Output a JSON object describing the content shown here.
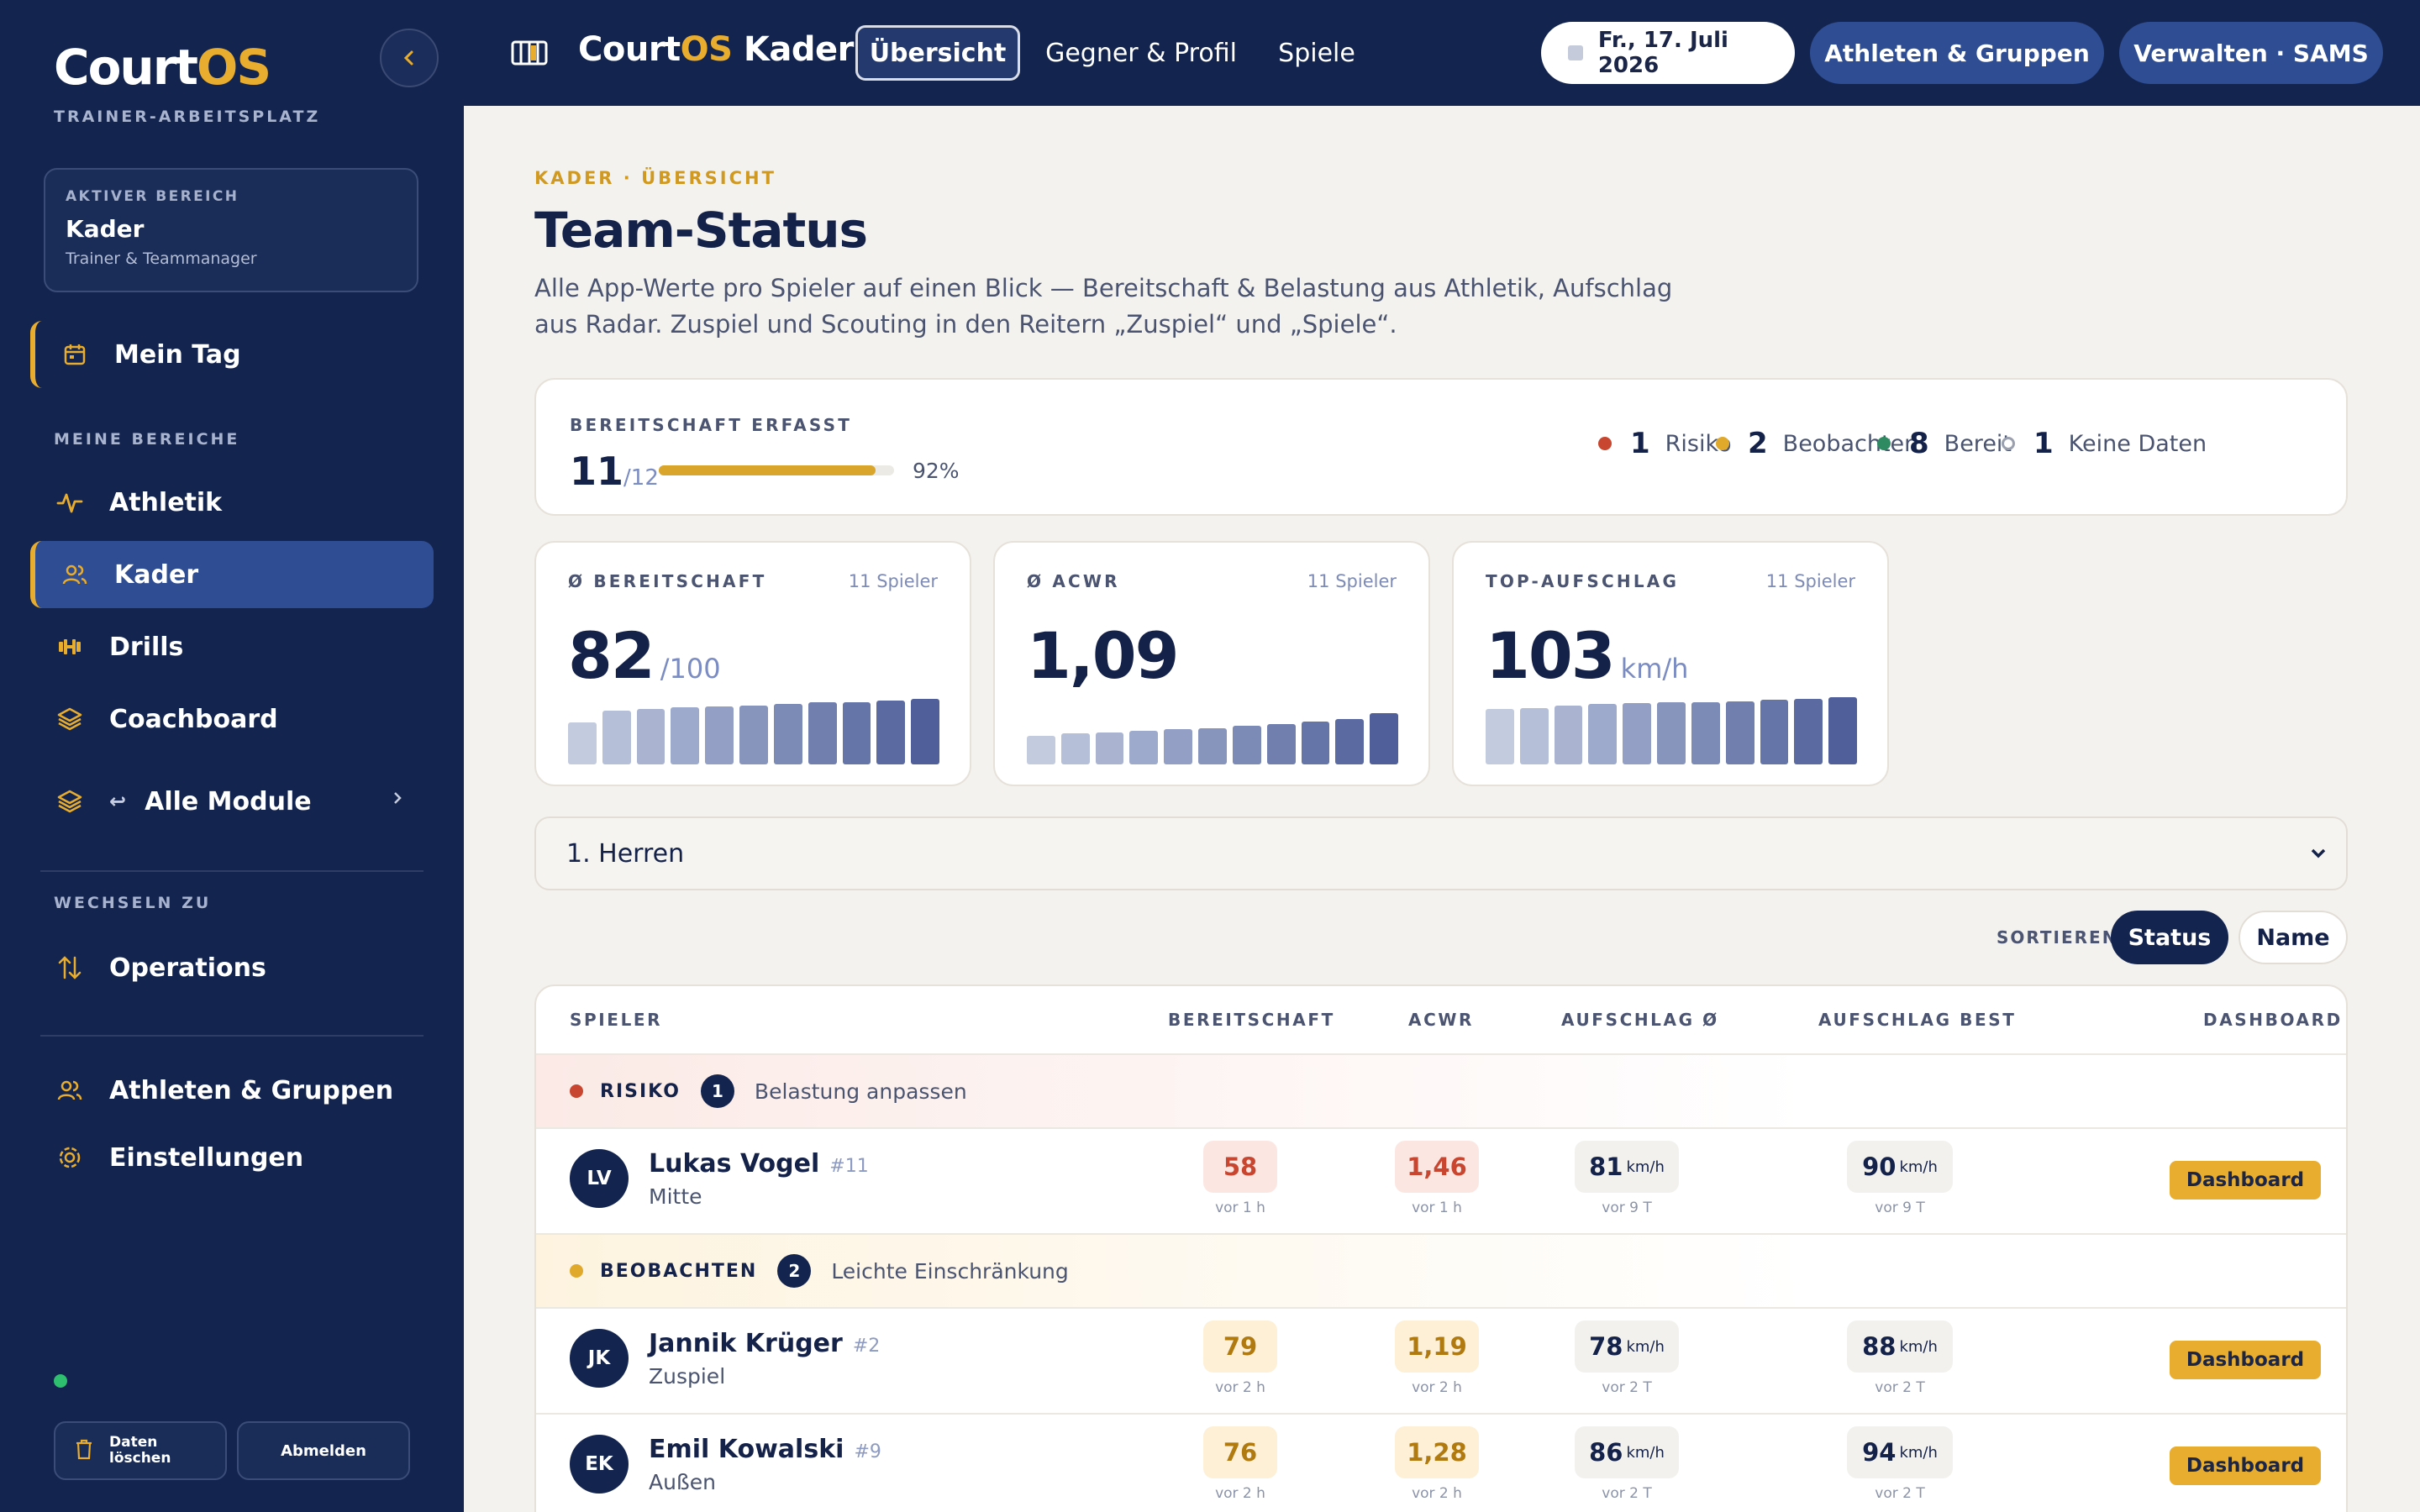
{
  "sidebar": {
    "logo_a": "Court",
    "logo_b": "OS",
    "subtitle": "TRAINER-ARBEITSPLATZ",
    "area_card": {
      "kicker": "AKTIVER BEREICH",
      "title": "Kader",
      "subtitle": "Trainer & Teammanager"
    },
    "my_day": "Mein Tag",
    "section_areas": "MEINE BEREICHE",
    "items": [
      {
        "label": "Athletik",
        "icon": "activity-icon"
      },
      {
        "label": "Kader",
        "icon": "users-icon"
      },
      {
        "label": "Drills",
        "icon": "dumbbell-icon"
      },
      {
        "label": "Coachboard",
        "icon": "layers-icon"
      }
    ],
    "all_modules": "Alle Module",
    "section_switch": "WECHSELN ZU",
    "operations": "Operations",
    "athletes_groups": "Athleten & Gruppen",
    "settings": "Einstellungen",
    "clear_data": "Daten löschen",
    "logout": "Abmelden"
  },
  "topbar": {
    "title_a": "Court",
    "title_b": "OS",
    "title_c": " Kader",
    "tabs": [
      "Übersicht",
      "Gegner & Profil",
      "Spiele"
    ],
    "date": "Fr., 17. Juli 2026",
    "athletes_btn": "Athleten & Gruppen",
    "manage_btn": "Verwalten · SAMS"
  },
  "main": {
    "crumb": "KADER · ÜBERSICHT",
    "title": "Team-Status",
    "intro": "Alle App-Werte pro Spieler auf einen Blick — Bereitschaft & Belastung aus Athletik, Aufschlag aus Radar. Zuspiel und Scouting in den Reitern „Zuspiel“ und „Spiele“.",
    "readiness": {
      "kicker": "BEREITSCHAFT ERFASST",
      "count": "11",
      "total": "/12",
      "percent": "92%",
      "fill": 0.92,
      "legend": [
        {
          "count": "1",
          "label": "Risiko",
          "color": "#c8462f"
        },
        {
          "count": "2",
          "label": "Beobachten",
          "color": "#e0a92b"
        },
        {
          "count": "8",
          "label": "Bereit",
          "color": "#2e8b61"
        },
        {
          "count": "1",
          "label": "Keine Daten",
          "color": "#9aa0ae"
        }
      ]
    },
    "stats": [
      {
        "kicker": "Ø BEREITSCHAFT",
        "count": "11 Spieler",
        "value": "82",
        "unit": "/100",
        "bars": [
          0.62,
          0.8,
          0.83,
          0.85,
          0.86,
          0.88,
          0.9,
          0.92,
          0.93,
          0.95,
          0.97
        ]
      },
      {
        "kicker": "Ø ACWR",
        "count": "11 Spieler",
        "value": "1,09",
        "unit": "",
        "bars": [
          0.43,
          0.46,
          0.48,
          0.5,
          0.52,
          0.54,
          0.57,
          0.6,
          0.64,
          0.68,
          0.76
        ]
      },
      {
        "kicker": "TOP-AUFSCHLAG",
        "count": "11 Spieler",
        "value": "103",
        "unit": "km/h",
        "bars": [
          0.82,
          0.84,
          0.88,
          0.9,
          0.91,
          0.92,
          0.93,
          0.94,
          0.96,
          0.98,
          1.0
        ]
      }
    ],
    "team_select": "1. Herren",
    "sort_label": "SORTIEREN",
    "sort_status": "Status",
    "sort_name": "Name",
    "table": {
      "headers": [
        "SPIELER",
        "BEREITSCHAFT",
        "ACWR",
        "AUFSCHLAG Ø",
        "AUFSCHLAG BEST",
        "DASHBOARD"
      ],
      "groups": [
        {
          "name": "RISIKO",
          "count": "1",
          "text": "Belastung anpassen"
        },
        {
          "name": "BEOBACHTEN",
          "count": "2",
          "text": "Leichte Einschränkung"
        }
      ],
      "rows": [
        {
          "initials": "LV",
          "name": "Lukas Vogel",
          "number": "#11",
          "role": "Mitte",
          "readiness": "58",
          "readiness_sub": "vor 1 h",
          "acwr": "1,46",
          "acwr_sub": "vor 1 h",
          "serve_avg": "81",
          "serve_avg_sub": "vor 9 T",
          "serve_best": "90",
          "serve_best_sub": "vor 9 T",
          "unit": "km/h",
          "button": "Dashboard"
        },
        {
          "initials": "JK",
          "name": "Jannik Krüger",
          "number": "#2",
          "role": "Zuspiel",
          "readiness": "79",
          "readiness_sub": "vor 2 h",
          "acwr": "1,19",
          "acwr_sub": "vor 2 h",
          "serve_avg": "78",
          "serve_avg_sub": "vor 2 T",
          "serve_best": "88",
          "serve_best_sub": "vor 2 T",
          "unit": "km/h",
          "button": "Dashboard"
        },
        {
          "initials": "EK",
          "name": "Emil Kowalski",
          "number": "#9",
          "role": "Außen",
          "readiness": "76",
          "readiness_sub": "vor 2 h",
          "acwr": "1,28",
          "acwr_sub": "vor 2 h",
          "serve_avg": "86",
          "serve_avg_sub": "vor 2 T",
          "serve_best": "94",
          "serve_best_sub": "vor 2 T",
          "unit": "km/h",
          "button": "Dashboard"
        }
      ]
    }
  }
}
